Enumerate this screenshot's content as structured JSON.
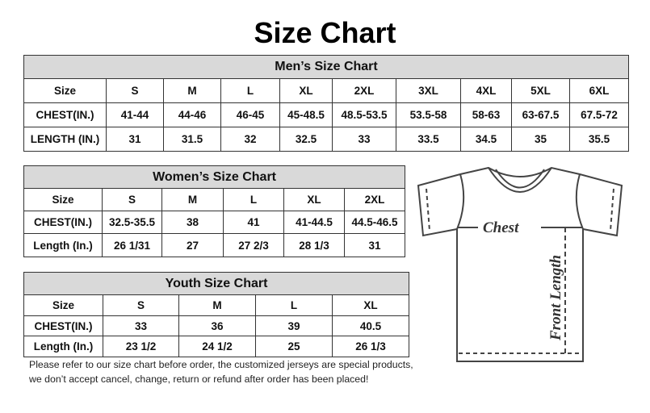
{
  "title": "Size Chart",
  "men": {
    "heading": "Men’s Size Chart",
    "rows": [
      [
        "Size",
        "S",
        "M",
        "L",
        "XL",
        "2XL",
        "3XL",
        "4XL",
        "5XL",
        "6XL"
      ],
      [
        "CHEST(IN.)",
        "41-44",
        "44-46",
        "46-45",
        "45-48.5",
        "48.5-53.5",
        "53.5-58",
        "58-63",
        "63-67.5",
        "67.5-72"
      ],
      [
        "LENGTH (IN.)",
        "31",
        "31.5",
        "32",
        "32.5",
        "33",
        "33.5",
        "34.5",
        "35",
        "35.5"
      ]
    ]
  },
  "women": {
    "heading": "Women’s Size Chart",
    "rows": [
      [
        "Size",
        "S",
        "M",
        "L",
        "XL",
        "2XL"
      ],
      [
        "CHEST(IN.)",
        "32.5-35.5",
        "38",
        "41",
        "41-44.5",
        "44.5-46.5"
      ],
      [
        "Length (In.)",
        "26 1/31",
        "27",
        "27 2/3",
        "28 1/3",
        "31"
      ]
    ]
  },
  "youth": {
    "heading": "Youth Size Chart",
    "rows": [
      [
        "Size",
        "S",
        "M",
        "L",
        "XL"
      ],
      [
        "CHEST(IN.)",
        "33",
        "36",
        "39",
        "40.5"
      ],
      [
        "Length (In.)",
        "23 1/2",
        "24 1/2",
        "25",
        "26 1/3"
      ]
    ]
  },
  "note": [
    "Please refer to our size chart before order, the customized jerseys are special products,",
    "we don’t accept cancel, change, return or refund after order has been placed!"
  ],
  "diagram": {
    "chest_label": "Chest",
    "length_label": "Front Length"
  }
}
